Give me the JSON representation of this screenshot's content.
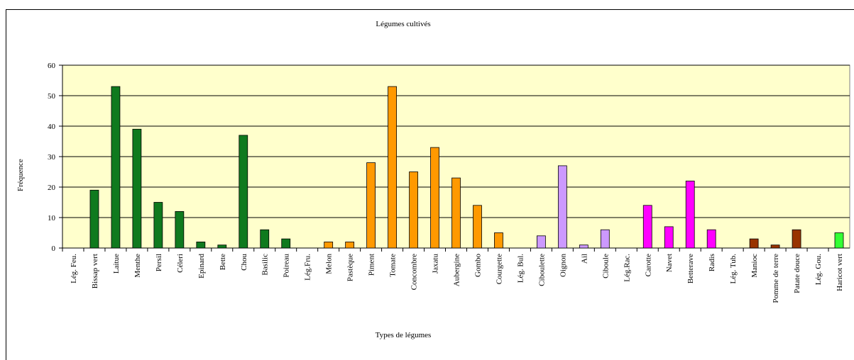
{
  "chart_data": {
    "type": "bar",
    "title": "Légumes cultivés",
    "x_label": "Types de légumes",
    "y_label": "Fréquence",
    "categories": [
      "Lég. Feu.",
      "Bissap vert",
      "Laitue",
      "Menthe",
      "Persil",
      "Céleri",
      "Epinard",
      "Bette",
      "Chou",
      "Basilic",
      "Poireau",
      "Lég.Fru.",
      "Melon",
      "Pastèque",
      "Piment",
      "Tomate",
      "Concombre",
      "Jaxatu",
      "Aubergine",
      "Gombo",
      "Courgette",
      "Lég. Bul.",
      "Ciboulette",
      "Oignon",
      "Ail",
      "Ciboule",
      "Lég.Rac.",
      "Carotte",
      "Navet",
      "Betterave",
      "Radis",
      "Lég. Tub.",
      "Manioc",
      "Pomme de terre",
      "Patate douce",
      "Lég. Gou.",
      "Haricot vert"
    ],
    "values": [
      0,
      19,
      53,
      39,
      15,
      12,
      2,
      1,
      37,
      6,
      3,
      0,
      2,
      2,
      28,
      53,
      25,
      33,
      23,
      14,
      5,
      0,
      4,
      27,
      1,
      6,
      0,
      14,
      7,
      22,
      6,
      0,
      3,
      1,
      6,
      0,
      5
    ],
    "colors": [
      "#0f7a1e",
      "#0f7a1e",
      "#0f7a1e",
      "#0f7a1e",
      "#0f7a1e",
      "#0f7a1e",
      "#0f7a1e",
      "#0f7a1e",
      "#0f7a1e",
      "#0f7a1e",
      "#0f7a1e",
      "#ff9900",
      "#ff9900",
      "#ff9900",
      "#ff9900",
      "#ff9900",
      "#ff9900",
      "#ff9900",
      "#ff9900",
      "#ff9900",
      "#ff9900",
      "#cc99ff",
      "#cc99ff",
      "#cc99ff",
      "#cc99ff",
      "#cc99ff",
      "#ff00ff",
      "#ff00ff",
      "#ff00ff",
      "#ff00ff",
      "#ff00ff",
      "#993300",
      "#993300",
      "#993300",
      "#993300",
      "#33ff33",
      "#33ff33"
    ],
    "ylim": [
      0,
      60
    ],
    "yticks": [
      0,
      10,
      20,
      30,
      40,
      50,
      60
    ],
    "grid": true
  }
}
